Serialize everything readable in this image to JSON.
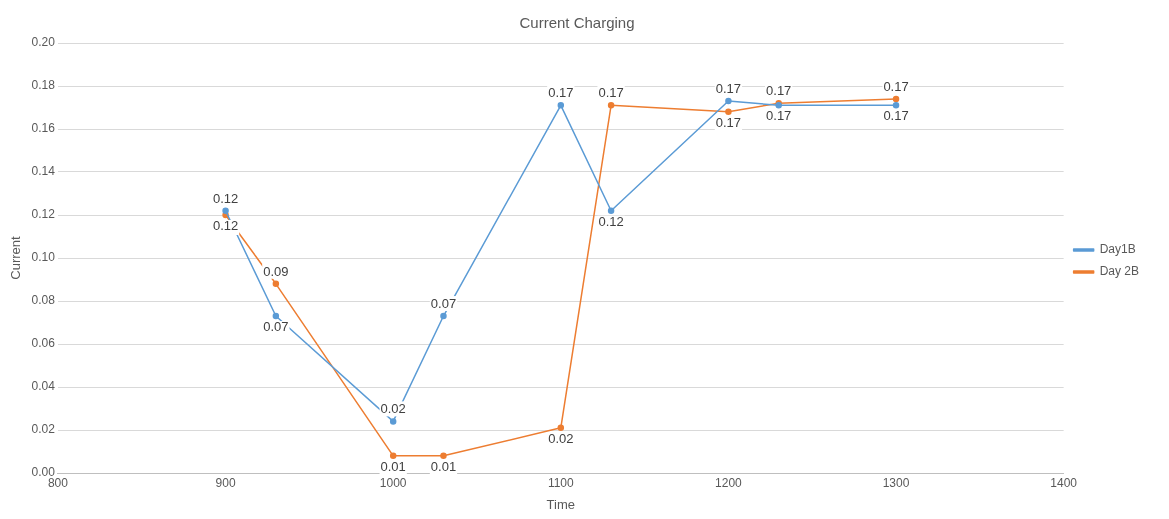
{
  "chart_data": {
    "type": "line",
    "title": "Current Charging",
    "xlabel": "Time",
    "ylabel": "Current",
    "x": [
      900,
      930,
      1000,
      1030,
      1100,
      1130,
      1200,
      1230,
      1300
    ],
    "series": [
      {
        "name": "Day1B",
        "color": "#5b9bd5",
        "values": [
          0.122,
          0.073,
          0.024,
          0.073,
          0.171,
          0.122,
          0.173,
          0.171,
          0.171
        ],
        "value_labels": [
          "0.12",
          "0.07",
          "0.02",
          "0.07",
          "0.17",
          "0.12",
          "0.17",
          "0.17",
          "0.17"
        ]
      },
      {
        "name": "Day 2B",
        "color": "#ed7d31",
        "values": [
          0.12,
          0.088,
          0.008,
          0.008,
          0.021,
          0.171,
          0.168,
          0.172,
          0.174
        ],
        "value_labels": [
          "0.12",
          "0.09",
          "0.01",
          "0.01",
          "0.02",
          "0.17",
          "0.17",
          "0.17",
          "0.17"
        ]
      }
    ],
    "xlim": [
      800,
      1400
    ],
    "xticks": [
      800,
      900,
      1000,
      1100,
      1200,
      1300,
      1400
    ],
    "ylim": [
      0,
      0.2
    ],
    "yticks": [
      {
        "value": 0,
        "label": "0.00"
      },
      {
        "value": 0.02,
        "label": "0.02"
      },
      {
        "value": 0.04,
        "label": "0.04"
      },
      {
        "value": 0.06,
        "label": "0.06"
      },
      {
        "value": 0.08,
        "label": "0.08"
      },
      {
        "value": 0.1,
        "label": "0.10"
      },
      {
        "value": 0.12,
        "label": "0.12"
      },
      {
        "value": 0.14,
        "label": "0.14"
      },
      {
        "value": 0.16,
        "label": "0.16"
      },
      {
        "value": 0.18,
        "label": "0.18"
      },
      {
        "value": 0.2,
        "label": "0.20"
      }
    ],
    "grid": "y",
    "legend": "right",
    "marker": "circle",
    "line_style": "solid"
  }
}
